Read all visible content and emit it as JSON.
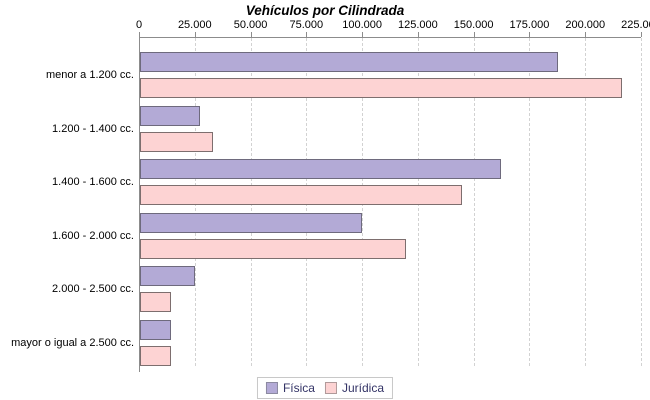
{
  "chart_data": {
    "type": "bar",
    "orientation": "horizontal",
    "title": "Vehículos por Cilindrada",
    "categories": [
      "menor a 1.200 cc.",
      "1.200 - 1.400 cc.",
      "1.400 - 1.600 cc.",
      "1.600 - 2.000 cc.",
      "2.000 - 2.500 cc.",
      "mayor o igual a 2.500 cc."
    ],
    "series": [
      {
        "name": "Física",
        "color": "#b3aad6",
        "values": [
          187500,
          27000,
          162000,
          99500,
          24500,
          14000
        ]
      },
      {
        "name": "Jurídica",
        "color": "#fdd3d3",
        "values": [
          216000,
          32500,
          144500,
          119000,
          14000,
          14000
        ]
      }
    ],
    "x_axis": {
      "min": 0,
      "max": 225000,
      "tick_interval": 25000,
      "tick_labels": [
        "0",
        "25.000",
        "50.000",
        "75.000",
        "100.000",
        "125.000",
        "150.000",
        "175.000",
        "200.000",
        "225.000"
      ],
      "position": "top"
    },
    "grid": "vertical-dashed",
    "legend": {
      "position": "bottom",
      "entries": [
        "Física",
        "Jurídica"
      ]
    }
  }
}
